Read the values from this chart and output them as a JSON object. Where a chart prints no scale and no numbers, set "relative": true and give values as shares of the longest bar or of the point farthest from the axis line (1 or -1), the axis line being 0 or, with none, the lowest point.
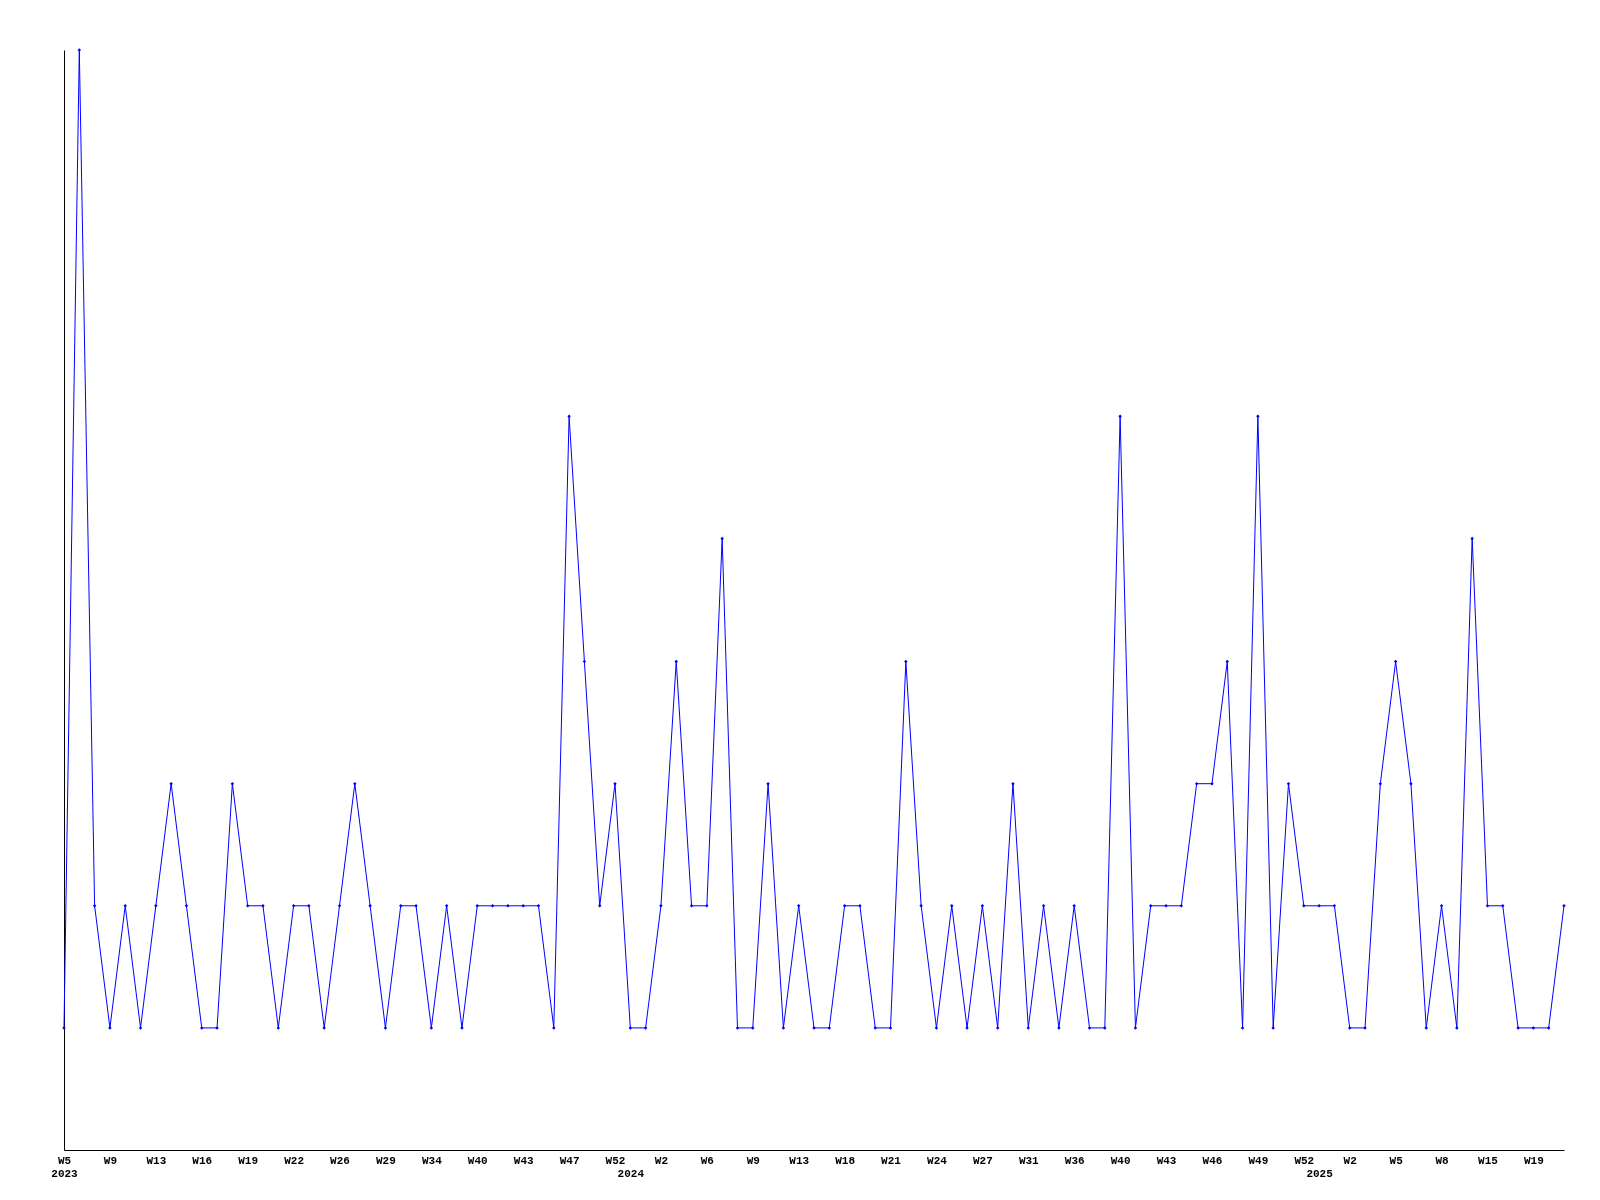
{
  "chart_data": {
    "type": "line",
    "relative": true,
    "marker": "diamond",
    "grid": false,
    "legend": false,
    "categories": [
      "W5\n2023",
      null,
      null,
      "W9",
      null,
      null,
      "W13",
      null,
      null,
      "W16",
      null,
      null,
      "W19",
      null,
      null,
      "W22",
      null,
      null,
      "W26",
      null,
      null,
      "W29",
      null,
      null,
      "W34",
      null,
      null,
      "W40",
      null,
      null,
      "W43",
      null,
      null,
      "W47",
      null,
      null,
      "W52",
      "\n2024",
      null,
      "W2",
      null,
      null,
      "W6",
      null,
      null,
      "W9",
      null,
      null,
      "W13",
      null,
      null,
      "W18",
      null,
      null,
      "W21",
      null,
      null,
      "W24",
      null,
      null,
      "W27",
      null,
      null,
      "W31",
      null,
      null,
      "W36",
      null,
      null,
      "W40",
      null,
      null,
      "W43",
      null,
      null,
      "W46",
      null,
      null,
      "W49",
      null,
      null,
      "W52",
      "\n2025",
      null,
      "W2",
      null,
      null,
      "W5",
      null,
      null,
      "W8",
      null,
      null,
      "W15",
      null,
      null,
      "W19",
      null,
      null
    ],
    "series": [
      {
        "color": "#0000ff",
        "values": [
          0.111,
          1,
          0.222,
          0.111,
          0.222,
          0.111,
          0.222,
          0.333,
          0.222,
          0.111,
          0.111,
          0.333,
          0.222,
          0.222,
          0.111,
          0.222,
          0.222,
          0.111,
          0.222,
          0.333,
          0.222,
          0.111,
          0.222,
          0.222,
          0.111,
          0.222,
          0.111,
          0.222,
          0.222,
          0.222,
          0.222,
          0.222,
          0.111,
          0.667,
          0.444,
          0.222,
          0.333,
          0.111,
          0.111,
          0.222,
          0.444,
          0.222,
          0.222,
          0.556,
          0.111,
          0.111,
          0.333,
          0.111,
          0.222,
          0.111,
          0.111,
          0.222,
          0.222,
          0.111,
          0.111,
          0.444,
          0.222,
          0.111,
          0.222,
          0.111,
          0.222,
          0.111,
          0.333,
          0.111,
          0.222,
          0.111,
          0.222,
          0.111,
          0.111,
          0.667,
          0.111,
          0.222,
          0.222,
          0.222,
          0.333,
          0.333,
          0.444,
          0.111,
          0.667,
          0.111,
          0.333,
          0.222,
          0.222,
          0.222,
          0.111,
          0.111,
          0.333,
          0.444,
          0.333,
          0.111,
          0.222,
          0.111,
          0.556,
          0.222,
          0.222,
          0.111,
          0.111,
          0.111,
          0.222
        ]
      }
    ]
  }
}
